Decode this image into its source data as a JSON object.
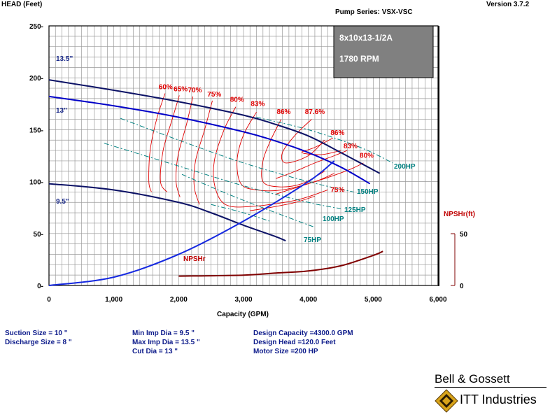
{
  "header": {
    "version": "Version 3.7.2",
    "pump_series": "Pump Series: VSX-VSC"
  },
  "chart_data": {
    "type": "line",
    "ylabel": "HEAD (Feet)",
    "xlabel": "Capacity (GPM)",
    "y2label": "NPSHr(ft)",
    "xlim": [
      0,
      6000
    ],
    "ylim": [
      0,
      250
    ],
    "y2lim": [
      0,
      50
    ],
    "grid": true,
    "x_ticks": [
      "0",
      "1,000",
      "2,000",
      "3,000",
      "4,000",
      "5,000",
      "6,000"
    ],
    "y_ticks": [
      "0-",
      "50-",
      "100-",
      "150-",
      "200-",
      "250-"
    ],
    "y2_ticks": [
      "0",
      "50"
    ],
    "model_box": {
      "model": "8x10x13-1/2A",
      "speed": "1780 RPM"
    },
    "colors": {
      "impeller": "#0000c8",
      "max_impeller": "#0c1266",
      "efficiency": "#e00000",
      "horsepower": "#008080",
      "npsh": "#800000",
      "system": "#1428e0"
    },
    "impeller_curves": [
      {
        "name": "13.5\"",
        "x": [
          0,
          1000,
          2000,
          3000,
          3500,
          4000,
          4500,
          5100
        ],
        "y": [
          198,
          188,
          177,
          164,
          155,
          144,
          128,
          108
        ]
      },
      {
        "name": "13\"",
        "x": [
          0,
          1000,
          2000,
          3000,
          3500,
          4000,
          4500,
          4950
        ],
        "y": [
          182,
          173,
          162,
          148,
          139,
          128,
          114,
          98
        ]
      },
      {
        "name": "9.5\"",
        "x": [
          0,
          1000,
          2000,
          2500,
          3000,
          3500,
          3650
        ],
        "y": [
          98,
          92,
          80,
          70,
          58,
          47,
          43
        ]
      }
    ],
    "system_curve": {
      "x": [
        0,
        1000,
        2000,
        3000,
        4000,
        4400
      ],
      "y": [
        0,
        8,
        30,
        62,
        100,
        120
      ]
    },
    "npsh_curve": {
      "x": [
        2000,
        3000,
        3500,
        4000,
        4500,
        5000,
        5150
      ],
      "y": [
        9,
        10,
        12,
        14,
        19,
        29,
        33
      ]
    },
    "efficiency_labels": [
      "60%",
      "65%",
      "70%",
      "75%",
      "80%",
      "83%",
      "86%",
      "87.6%",
      "86%",
      "83%",
      "80%",
      "75%"
    ],
    "efficiency_label_points": [
      {
        "x": 1800,
        "y": 189
      },
      {
        "x": 2030,
        "y": 187
      },
      {
        "x": 2250,
        "y": 186
      },
      {
        "x": 2550,
        "y": 182
      },
      {
        "x": 2900,
        "y": 177
      },
      {
        "x": 3220,
        "y": 173
      },
      {
        "x": 3620,
        "y": 165
      },
      {
        "x": 4100,
        "y": 165
      },
      {
        "x": 4450,
        "y": 145
      },
      {
        "x": 4650,
        "y": 132
      },
      {
        "x": 4900,
        "y": 123
      },
      {
        "x": 4450,
        "y": 90
      }
    ],
    "hp_lines": [
      {
        "name": "200HP",
        "x": [
          3200,
          4000,
          4800,
          5300
        ],
        "y": [
          162,
          150,
          133,
          118
        ]
      },
      {
        "name": "150HP",
        "x": [
          1100,
          2000,
          3000,
          4000,
          4700
        ],
        "y": [
          161,
          140,
          118,
          100,
          90
        ]
      },
      {
        "name": "125HP",
        "x": [
          850,
          2000,
          3000,
          4000,
          4500
        ],
        "y": [
          137,
          115,
          96,
          80,
          74
        ]
      },
      {
        "name": "100HP",
        "x": [
          2050,
          2800,
          3500,
          4100
        ],
        "y": [
          107,
          87,
          70,
          56
        ]
      },
      {
        "name": "75HP",
        "x": [
          2500,
          3000,
          3400
        ],
        "y": [
          78,
          70,
          62
        ]
      }
    ],
    "npsh_label": "NPSHr"
  },
  "specs": {
    "suction": "Suction Size = 10 \"",
    "discharge": "Discharge Size = 8 \"",
    "min_imp": "Min Imp Dia = 9.5 \"",
    "max_imp": "Max Imp Dia = 13.5 \"",
    "cut_dia": "Cut Dia = 13 \"",
    "design_capacity": "Design Capacity =4300.0 GPM",
    "design_head": "Design Head =120.0 Feet",
    "motor_size": "Motor Size =200 HP"
  },
  "brand": {
    "company": "Bell & Gossett",
    "parent": "ITT Industries"
  }
}
